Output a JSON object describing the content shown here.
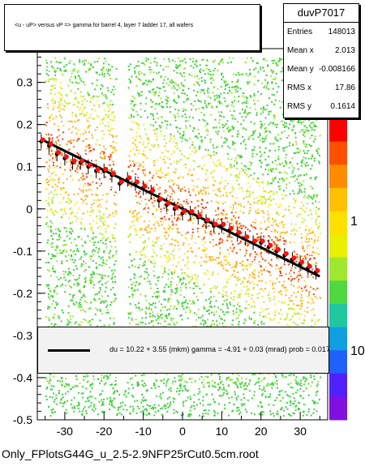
{
  "chart_data": {
    "type": "scatter",
    "title": "<u - uP>       versus   vP =>  gamma for barrel 4, layer 7 ladder 17, all wafers",
    "xlim": [
      -37,
      37
    ],
    "ylim": [
      -0.5,
      0.38
    ],
    "x_ticks": [
      -30,
      -20,
      -10,
      0,
      10,
      20,
      30
    ],
    "y_ticks": [
      -0.5,
      -0.4,
      -0.3,
      -0.2,
      -0.1,
      0,
      0.1,
      0.2,
      0.3
    ],
    "y_tick_labels": [
      "-0.5",
      "-0.4",
      "-0.3",
      "-0.2",
      "-0.1",
      "0",
      "0.1",
      "0.2",
      "0.3"
    ],
    "colorbar_labels": [
      "1",
      "10"
    ],
    "fit_line": {
      "x": [
        -36,
        35
      ],
      "y": [
        0.165,
        -0.16
      ]
    },
    "profile_points": {
      "x": [
        -36,
        -34,
        -32,
        -30,
        -28,
        -26,
        -24,
        -22,
        -20,
        -18,
        -16,
        -14,
        -12,
        -10,
        -8,
        -6,
        -4,
        -2,
        0,
        2,
        4,
        6,
        8,
        10,
        12,
        14,
        16,
        18,
        20,
        22,
        24,
        26,
        28,
        30,
        32,
        34
      ],
      "y": [
        0.16,
        0.15,
        0.13,
        0.12,
        0.11,
        0.11,
        0.1,
        0.09,
        0.09,
        0.08,
        0.06,
        0.07,
        0.06,
        0.05,
        0.04,
        0.02,
        0.01,
        0.0,
        -0.01,
        -0.01,
        -0.02,
        -0.03,
        -0.04,
        -0.04,
        -0.05,
        -0.06,
        -0.07,
        -0.08,
        -0.08,
        -0.09,
        -0.1,
        -0.11,
        -0.12,
        -0.13,
        -0.14,
        -0.15
      ]
    }
  },
  "title_text": "<u - uP>       versus   vP =>  gamma for barrel 4, layer 7 ladder 17, all wafers",
  "stats": {
    "name": "duvP7017",
    "rows": [
      {
        "k": "Entries",
        "v": "148013"
      },
      {
        "k": "Mean x",
        "v": "2.013"
      },
      {
        "k": "Mean y",
        "v": "-0.008166"
      },
      {
        "k": "RMS x",
        "v": "17.86"
      },
      {
        "k": "RMS y",
        "v": "0.1614"
      }
    ]
  },
  "fit": {
    "text": "du =    10.22 +   3.55 (mkm) gamma =    -4.91 +  0.03 (mrad) prob = 0.017"
  },
  "footer": "Only_FPlotsG44G_u_2.5-2.9NFP25rCut0.5cm.root",
  "colors": {
    "line": "#000000",
    "points": "#ff0000",
    "bg_green": "#2ec82e"
  }
}
